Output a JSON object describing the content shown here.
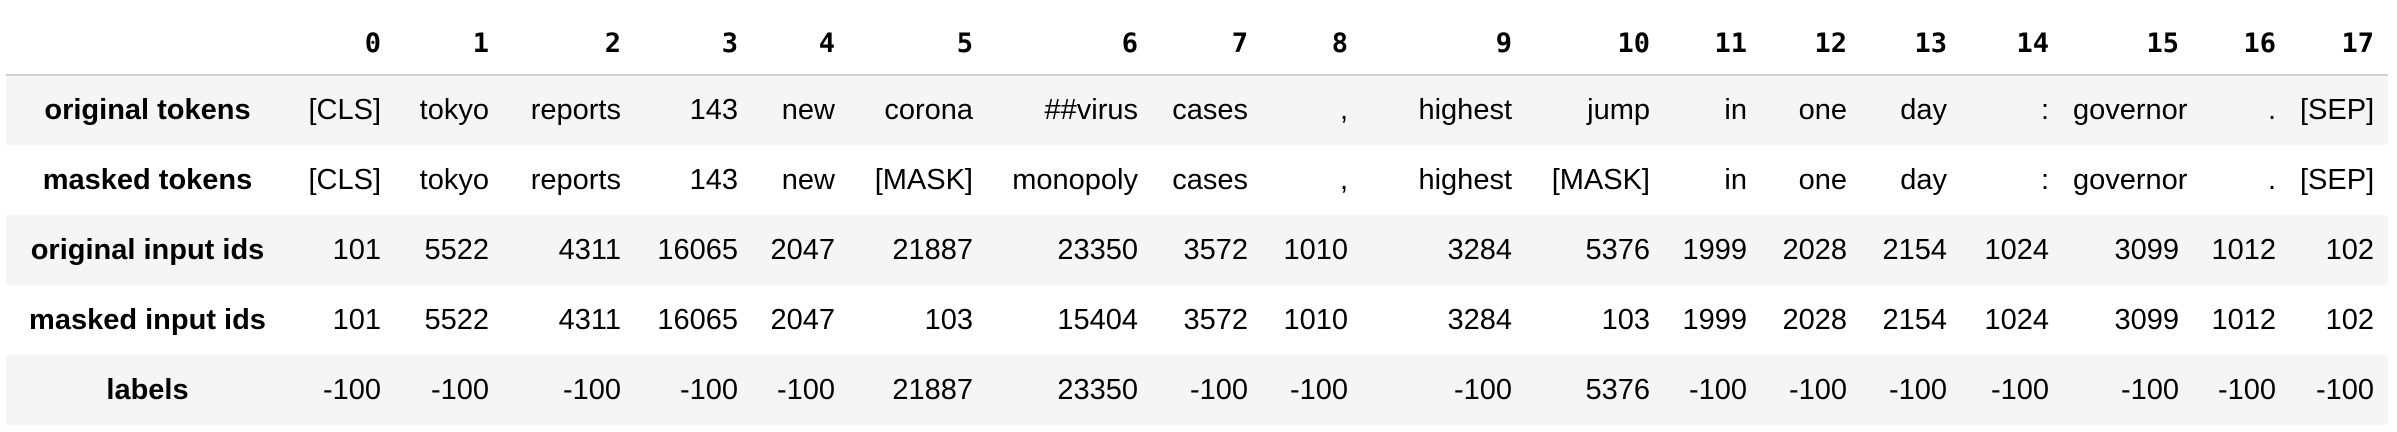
{
  "columns": [
    "",
    "0",
    "1",
    "2",
    "3",
    "4",
    "5",
    "6",
    "7",
    "8",
    "9",
    "10",
    "11",
    "12",
    "13",
    "14",
    "15",
    "16",
    "17"
  ],
  "rows": [
    {
      "label": "original tokens",
      "cells": [
        "[CLS]",
        "tokyo",
        "reports",
        "143",
        "new",
        "corona",
        "##virus",
        "cases",
        ",",
        "highest",
        "jump",
        "in",
        "one",
        "day",
        ":",
        "governor",
        ".",
        "[SEP]"
      ]
    },
    {
      "label": "masked tokens",
      "cells": [
        "[CLS]",
        "tokyo",
        "reports",
        "143",
        "new",
        "[MASK]",
        "monopoly",
        "cases",
        ",",
        "highest",
        "[MASK]",
        "in",
        "one",
        "day",
        ":",
        "governor",
        ".",
        "[SEP]"
      ]
    },
    {
      "label": "original input ids",
      "cells": [
        "101",
        "5522",
        "4311",
        "16065",
        "2047",
        "21887",
        "23350",
        "3572",
        "1010",
        "3284",
        "5376",
        "1999",
        "2028",
        "2154",
        "1024",
        "3099",
        "1012",
        "102"
      ]
    },
    {
      "label": "masked input ids",
      "cells": [
        "101",
        "5522",
        "4311",
        "16065",
        "2047",
        "103",
        "15404",
        "3572",
        "1010",
        "3284",
        "103",
        "1999",
        "2028",
        "2154",
        "1024",
        "3099",
        "1012",
        "102"
      ]
    },
    {
      "label": "labels",
      "cells": [
        "-100",
        "-100",
        "-100",
        "-100",
        "-100",
        "21887",
        "23350",
        "-100",
        "-100",
        "-100",
        "5376",
        "-100",
        "-100",
        "-100",
        "-100",
        "-100",
        "-100",
        "-100"
      ]
    }
  ]
}
